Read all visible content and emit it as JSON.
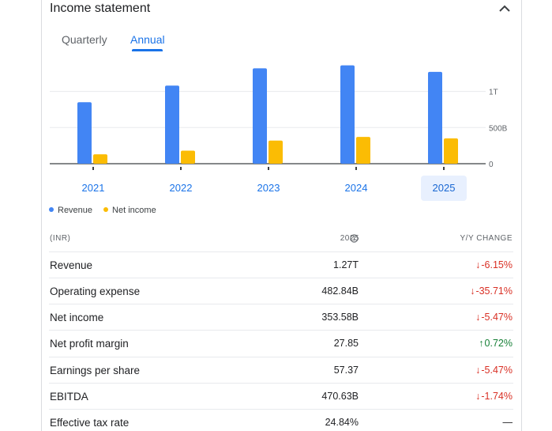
{
  "header": {
    "title": "Income statement",
    "collapse_icon": "chevron-up-icon"
  },
  "tabs": [
    {
      "label": "Quarterly",
      "selected": false
    },
    {
      "label": "Annual",
      "selected": true
    }
  ],
  "colors": {
    "revenue": "#4285f4",
    "net_income": "#fbbc04",
    "accent": "#1a73e8",
    "negative": "#d93025",
    "positive": "#188038"
  },
  "chart_data": {
    "type": "bar",
    "categories": [
      "2021",
      "2022",
      "2023",
      "2024",
      "2025"
    ],
    "selected_category": "2025",
    "series": [
      {
        "name": "Revenue",
        "values": [
          0.85,
          1.08,
          1.32,
          1.36,
          1.27
        ]
      },
      {
        "name": "Net income",
        "values": [
          0.13,
          0.18,
          0.32,
          0.37,
          0.35
        ]
      }
    ],
    "value_unit": "trillions INR",
    "ylim": [
      0,
      1.4
    ],
    "yticks": [
      {
        "value": 0,
        "label": "0"
      },
      {
        "value": 0.5,
        "label": "500B"
      },
      {
        "value": 1.0,
        "label": "1T"
      }
    ],
    "grid": true,
    "legend_position": "bottom-left"
  },
  "table": {
    "currency_label": "(INR)",
    "year_label": "2025",
    "change_label": "Y/Y CHANGE",
    "rows": [
      {
        "label": "Revenue",
        "value": "1.27T",
        "change": "-6.15%",
        "direction": "down"
      },
      {
        "label": "Operating expense",
        "value": "482.84B",
        "change": "-35.71%",
        "direction": "down"
      },
      {
        "label": "Net income",
        "value": "353.58B",
        "change": "-5.47%",
        "direction": "down"
      },
      {
        "label": "Net profit margin",
        "value": "27.85",
        "change": "0.72%",
        "direction": "up"
      },
      {
        "label": "Earnings per share",
        "value": "57.37",
        "change": "-5.47%",
        "direction": "down"
      },
      {
        "label": "EBITDA",
        "value": "470.63B",
        "change": "-1.74%",
        "direction": "down"
      },
      {
        "label": "Effective tax rate",
        "value": "24.84%",
        "change": "—",
        "direction": "none"
      }
    ]
  }
}
